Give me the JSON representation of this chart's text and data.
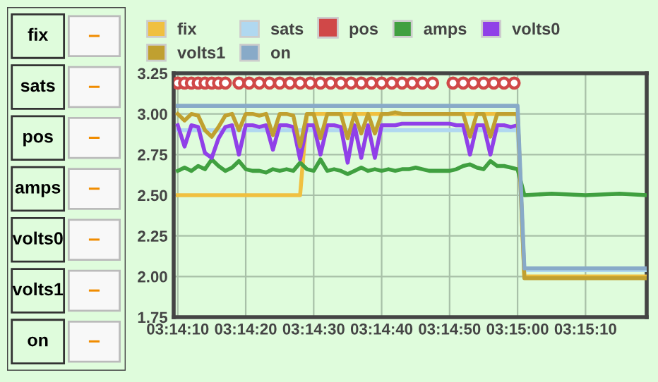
{
  "chart_data": [
    {
      "type": "other",
      "annotations": [
        "fix",
        "–",
        "sats",
        "–",
        "pos",
        "–",
        "amps",
        "–",
        "volts0",
        "–",
        "volts1",
        "–",
        "on",
        "–"
      ]
    },
    {
      "type": "line",
      "legend": "top",
      "grid": true,
      "line_style": "solid",
      "x": [
        3.236111,
        3.236389,
        3.236667,
        3.236944,
        3.237222,
        3.2375,
        3.237778,
        3.238056,
        3.238333,
        3.238611,
        3.238889,
        3.239167,
        3.239444,
        3.239722,
        3.24,
        3.240278,
        3.240556,
        3.240833,
        3.241111,
        3.241389,
        3.241667,
        3.241944,
        3.242222,
        3.2425,
        3.242778,
        3.243056,
        3.243333,
        3.243611,
        3.243889,
        3.244167,
        3.244444,
        3.244722,
        3.245,
        3.245278,
        3.245556,
        3.245833,
        3.246111,
        3.246389,
        3.246667,
        3.246944,
        3.247222,
        3.2475,
        3.247778,
        3.248056,
        3.248333,
        3.248611,
        3.248889,
        3.249167,
        3.249444,
        3.249722,
        3.25,
        3.250278,
        3.251389,
        3.252778,
        3.254167,
        3.255278
      ],
      "xlim": [
        3.235944,
        3.255278
      ],
      "xticks": [
        {
          "value": 3.236111,
          "label": "03:14:10"
        },
        {
          "value": 3.238889,
          "label": "03:14:20"
        },
        {
          "value": 3.241667,
          "label": "03:14:30"
        },
        {
          "value": 3.244444,
          "label": "03:14:40"
        },
        {
          "value": 3.247222,
          "label": "03:14:50"
        },
        {
          "value": 3.25,
          "label": "03:15:00"
        },
        {
          "value": 3.252778,
          "label": "03:15:10"
        }
      ],
      "ylim": [
        1.75,
        3.25
      ],
      "yticks": [
        {
          "value": 1.75,
          "label": "1.75"
        },
        {
          "value": 2,
          "label": "2.00"
        },
        {
          "value": 2.25,
          "label": "2.25"
        },
        {
          "value": 2.5,
          "label": "2.50"
        },
        {
          "value": 2.75,
          "label": "2.75"
        },
        {
          "value": 3,
          "label": "3.00"
        },
        {
          "value": 3.25,
          "label": "3.25"
        }
      ],
      "series": [
        {
          "name": "fix",
          "color": "#f0c040",
          "values": [
            2.5,
            2.5,
            2.5,
            2.5,
            2.5,
            2.5,
            2.5,
            2.5,
            2.5,
            2.5,
            2.5,
            2.5,
            2.5,
            2.5,
            2.5,
            2.5,
            2.5,
            2.5,
            2.5,
            3.0,
            3.0,
            3.0,
            3.0,
            3.0,
            3.0,
            3.0,
            3.0,
            3.0,
            3.0,
            3.0,
            3.0,
            3.0,
            3.0,
            3.0,
            3.0,
            3.0,
            3.0,
            3.0,
            3.0,
            3.0,
            3.0,
            3.0,
            3.0,
            3.0,
            3.0,
            3.0,
            3.0,
            3.0,
            3.0,
            3.0,
            3.0,
            2.0,
            2.0,
            2.0,
            2.0,
            2.0
          ]
        },
        {
          "name": "sats",
          "color": "#b0d8f0",
          "values": [
            2.9,
            2.9,
            2.9,
            2.9,
            2.9,
            2.9,
            2.9,
            2.9,
            2.9,
            2.9,
            2.9,
            2.9,
            2.9,
            2.9,
            2.9,
            2.9,
            2.9,
            2.9,
            2.9,
            2.9,
            2.9,
            2.9,
            2.9,
            2.9,
            2.9,
            2.9,
            2.9,
            2.9,
            2.9,
            2.9,
            2.9,
            2.9,
            2.9,
            2.9,
            2.9,
            2.9,
            2.9,
            2.9,
            2.9,
            2.9,
            2.9,
            2.9,
            2.9,
            2.9,
            2.9,
            2.9,
            2.9,
            2.9,
            2.9,
            2.9,
            2.9,
            2.04,
            2.04,
            2.04,
            2.04,
            2.04
          ]
        },
        {
          "name": "pos",
          "color": "#d04848",
          "type": "scatter",
          "marker": "circle",
          "x": [
            3.236111,
            3.236389,
            3.236667,
            3.236944,
            3.237222,
            3.2375,
            3.237778,
            3.238056,
            3.238611,
            3.239028,
            3.239444,
            3.239861,
            3.240278,
            3.240694,
            3.241111,
            3.241528,
            3.241944,
            3.242361,
            3.242778,
            3.243194,
            3.243611,
            3.244028,
            3.244444,
            3.244861,
            3.245278,
            3.245694,
            3.246111,
            3.246528,
            3.247361,
            3.247778,
            3.248194,
            3.248611,
            3.249028,
            3.249444,
            3.249861
          ],
          "values": [
            3.19,
            3.19,
            3.19,
            3.19,
            3.19,
            3.19,
            3.19,
            3.19,
            3.19,
            3.19,
            3.19,
            3.19,
            3.19,
            3.19,
            3.19,
            3.19,
            3.19,
            3.19,
            3.19,
            3.19,
            3.19,
            3.19,
            3.19,
            3.19,
            3.19,
            3.19,
            3.19,
            3.19,
            3.19,
            3.19,
            3.19,
            3.19,
            3.19,
            3.19,
            3.19
          ]
        },
        {
          "name": "amps",
          "color": "#40a040",
          "values": [
            2.65,
            2.67,
            2.65,
            2.68,
            2.66,
            2.72,
            2.68,
            2.65,
            2.67,
            2.71,
            2.66,
            2.65,
            2.65,
            2.64,
            2.66,
            2.65,
            2.66,
            2.65,
            2.7,
            2.66,
            2.65,
            2.72,
            2.65,
            2.66,
            2.65,
            2.63,
            2.65,
            2.67,
            2.65,
            2.66,
            2.65,
            2.66,
            2.65,
            2.66,
            2.66,
            2.67,
            2.66,
            2.65,
            2.65,
            2.65,
            2.65,
            2.66,
            2.68,
            2.69,
            2.67,
            2.66,
            2.71,
            2.68,
            2.68,
            2.67,
            2.66,
            2.5,
            2.51,
            2.5,
            2.51,
            2.5
          ]
        },
        {
          "name": "volts0",
          "color": "#9040e8",
          "values": [
            2.93,
            2.8,
            2.93,
            2.92,
            2.76,
            2.73,
            2.85,
            2.92,
            2.93,
            2.75,
            2.93,
            2.93,
            2.92,
            2.93,
            2.78,
            2.93,
            2.93,
            2.92,
            2.72,
            2.93,
            2.93,
            2.75,
            2.93,
            2.93,
            2.92,
            2.7,
            2.93,
            2.73,
            2.93,
            2.73,
            2.93,
            2.93,
            2.93,
            2.94,
            2.94,
            2.94,
            2.94,
            2.94,
            2.94,
            2.94,
            2.94,
            2.93,
            2.93,
            2.75,
            2.93,
            2.93,
            2.75,
            2.93,
            2.93,
            2.92,
            2.93,
            null,
            null,
            null,
            null,
            null
          ]
        },
        {
          "name": "volts1",
          "color": "#c0a030",
          "values": [
            3.0,
            2.96,
            3.0,
            2.99,
            2.9,
            2.86,
            2.92,
            2.99,
            3.0,
            2.9,
            3.0,
            3.0,
            2.99,
            3.0,
            2.87,
            3.0,
            3.0,
            2.99,
            2.8,
            3.0,
            3.0,
            2.85,
            3.0,
            3.0,
            3.0,
            2.85,
            3.0,
            2.88,
            3.0,
            2.88,
            3.0,
            3.0,
            3.01,
            3.0,
            3.0,
            3.0,
            3.0,
            3.0,
            3.0,
            3.0,
            3.0,
            3.0,
            3.0,
            2.86,
            3.0,
            3.0,
            2.86,
            3.0,
            3.0,
            3.0,
            3.0,
            1.99,
            1.99,
            1.99,
            1.99,
            1.99
          ]
        },
        {
          "name": "on",
          "color": "#88aac8",
          "values": [
            3.05,
            3.05,
            3.05,
            3.05,
            3.05,
            3.05,
            3.05,
            3.05,
            3.05,
            3.05,
            3.05,
            3.05,
            3.05,
            3.05,
            3.05,
            3.05,
            3.05,
            3.05,
            3.05,
            3.05,
            3.05,
            3.05,
            3.05,
            3.05,
            3.05,
            3.05,
            3.05,
            3.05,
            3.05,
            3.05,
            3.05,
            3.05,
            3.05,
            3.05,
            3.05,
            3.05,
            3.05,
            3.05,
            3.05,
            3.05,
            3.05,
            3.05,
            3.05,
            3.05,
            3.05,
            3.05,
            3.05,
            3.05,
            3.05,
            3.05,
            3.05,
            2.05,
            2.05,
            2.05,
            2.05,
            2.05
          ]
        }
      ]
    }
  ]
}
